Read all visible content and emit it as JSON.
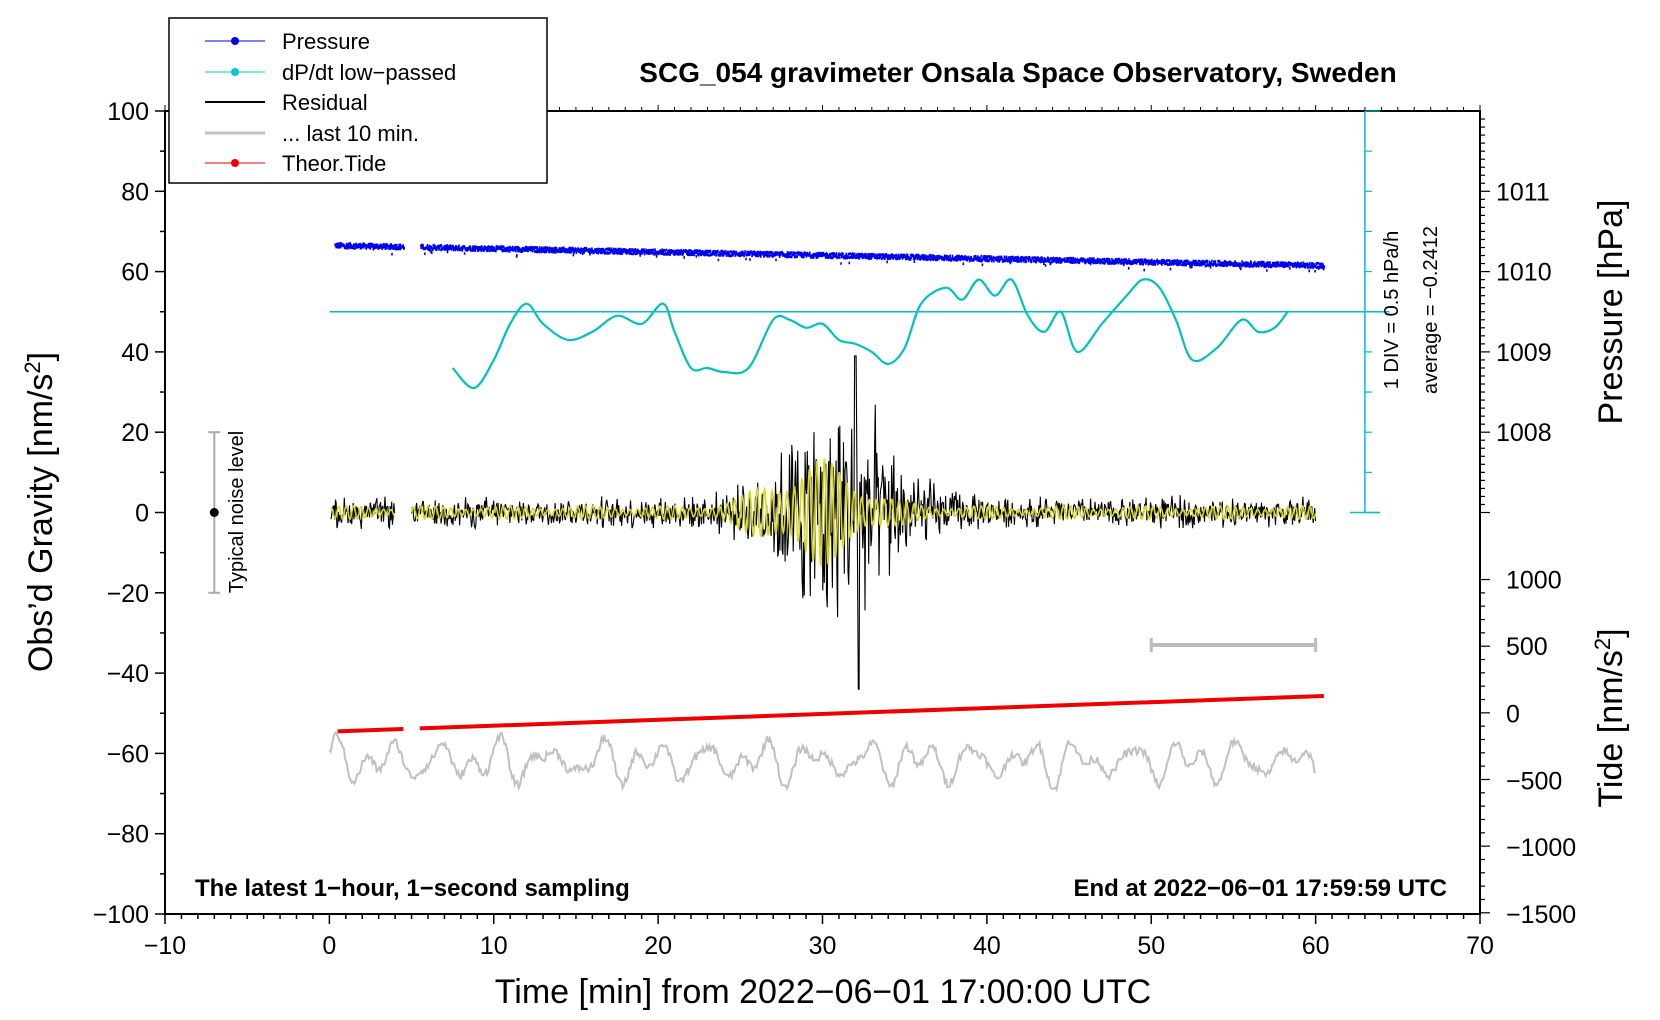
{
  "chart_data": {
    "type": "line",
    "title": "SCG_054 gravimeter Onsala Space Observatory, Sweden",
    "xlabel": "Time [min] from 2022−06−01 17:00:00 UTC",
    "ylabel_left": "Obs’d Gravity [nm/s",
    "ylabel_left_sup": "2",
    "ylabel_left_tail": "]",
    "ylabel_right_pressure": "Pressure [hPa]",
    "ylabel_right_tide": "Tide [nm/s",
    "ylabel_right_tide_sup": "2",
    "ylabel_right_tide_tail": "]",
    "xlim": [
      -10,
      70
    ],
    "ylim": [
      -100,
      100
    ],
    "xticks": [
      "−10",
      "0",
      "10",
      "20",
      "30",
      "40",
      "50",
      "60",
      "70"
    ],
    "xtick_values": [
      -10,
      0,
      10,
      20,
      30,
      40,
      50,
      60,
      70
    ],
    "yticks_left": [
      "100",
      "80",
      "60",
      "40",
      "20",
      "0",
      "−20",
      "−40",
      "−60",
      "−80",
      "−100"
    ],
    "ytick_left_values": [
      100,
      80,
      60,
      40,
      20,
      0,
      -20,
      -40,
      -60,
      -80,
      -100
    ],
    "pressure_axis": {
      "ticks": [
        "1011",
        "1010",
        "1009",
        "1008"
      ],
      "tick_values": [
        1011,
        1010,
        1009,
        1008
      ],
      "gravity_equivalent": [
        80,
        60,
        40,
        20
      ]
    },
    "tide_axis": {
      "ticks": [
        "1000",
        "500",
        "0",
        "−500",
        "−1000",
        "−1500"
      ],
      "tick_values": [
        1000,
        500,
        0,
        -500,
        -1000,
        -1500
      ],
      "gravity_equivalent": [
        -16.7,
        -33.3,
        -50,
        -66.7,
        -83.3,
        -100
      ]
    },
    "legend": [
      {
        "label": "Pressure",
        "color": "#0000ee",
        "marker": true
      },
      {
        "label": "dP/dt low−passed",
        "color": "#00c8c8",
        "marker": true
      },
      {
        "label": "Residual",
        "color": "#000000",
        "marker": false
      },
      {
        "label": "... last 10 min.",
        "color": "#c0c0c0",
        "marker": false
      },
      {
        "label": "Theor.Tide",
        "color": "#ee0000",
        "marker": true
      }
    ],
    "colors": {
      "pressure": "#0000ee",
      "dpdt": "#00c0c0",
      "residual": "#000000",
      "lowpass_residual": "#d8d820",
      "last10": "#c0c0c0",
      "tide": "#ee0000",
      "noise": "#aaaaaa"
    },
    "series": [
      {
        "name": "Pressure",
        "x_range": [
          0.3,
          60.5
        ],
        "gap": [
          4.5,
          5.5
        ],
        "y_start": 66.5,
        "y_end": 61.5,
        "units": "gravity-axis"
      },
      {
        "name": "dP/dt low−passed",
        "x": [
          7.5,
          8.8,
          10,
          11,
          12,
          13,
          14.5,
          16,
          17.5,
          19,
          20.3,
          21,
          22,
          23,
          24,
          25.5,
          27,
          28,
          29,
          30,
          31,
          32,
          33,
          34,
          35,
          36,
          37.5,
          38.5,
          39.5,
          40.5,
          41.5,
          42.5,
          43.5,
          44.5,
          45.5,
          47,
          48.5,
          49.5,
          50.5,
          51.5,
          52.5,
          54,
          55.5,
          56.5,
          57.5,
          58.3
        ],
        "y": [
          36,
          31,
          38,
          47,
          52,
          47,
          43,
          45,
          49,
          47,
          52,
          45,
          36,
          36,
          35,
          36,
          48,
          48,
          46,
          47,
          43,
          42,
          40,
          37,
          41,
          52,
          56,
          53,
          58,
          54,
          58,
          49,
          45,
          50,
          40,
          47,
          54,
          58,
          56,
          48,
          38,
          41,
          48,
          45,
          46,
          50
        ],
        "baseline": 50,
        "scale": "1 DIV = 0.5 hPa/h"
      },
      {
        "name": "Residual",
        "x_range": [
          0,
          60
        ],
        "gap": [
          4,
          5
        ],
        "peak_min": 32,
        "peak_amp": 40
      },
      {
        "name": "Theor.Tide",
        "x_range": [
          0.5,
          60.5
        ],
        "gap": [
          4.5,
          5.5
        ],
        "y_start": -54.5,
        "y_end": -45.7,
        "units": "gravity-axis"
      },
      {
        "name": "... last 10 min.",
        "x_range": [
          0,
          60
        ],
        "offset": -62
      }
    ],
    "noise_bar": {
      "x": -7,
      "ymin": -20,
      "ymax": 20,
      "label": "Typical noise level"
    },
    "time_bar": {
      "x_start": 50,
      "x_end": 60,
      "y": -33
    },
    "dpdt_scale_bar": {
      "x": 63,
      "ymin": 0,
      "ymax": 100,
      "label_div": "1 DIV = 0.5 hPa/h",
      "label_avg": "average = −0.2412"
    },
    "footer_left": "The latest 1−hour, 1−second sampling",
    "footer_right": "End at 2022−06−01 17:59:59 UTC"
  }
}
